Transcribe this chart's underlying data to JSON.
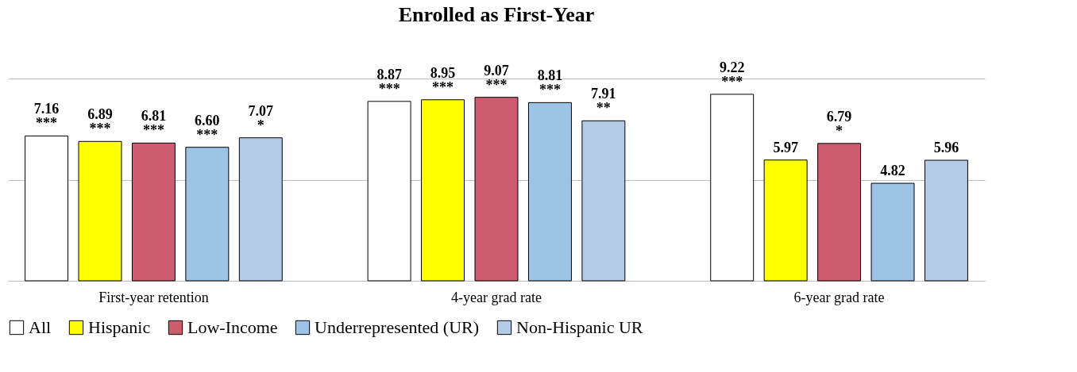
{
  "chart_data": {
    "type": "bar",
    "title": "Enrolled as First-Year",
    "categories": [
      "First-year retention",
      "4-year grad rate",
      "6-year grad rate"
    ],
    "series": [
      {
        "name": "All",
        "color": "#ffffff",
        "values": [
          7.16,
          8.87,
          9.22
        ],
        "value_labels": [
          "7.16\n***",
          "8.87\n***",
          "9.22\n***"
        ]
      },
      {
        "name": "Hispanic",
        "color": "#ffff00",
        "values": [
          6.89,
          8.95,
          5.97
        ],
        "value_labels": [
          "6.89\n***",
          "8.95\n***",
          "5.97"
        ]
      },
      {
        "name": "Low-Income",
        "color": "#cd5c6e",
        "values": [
          6.81,
          9.07,
          6.79
        ],
        "value_labels": [
          "6.81\n***",
          "9.07\n***",
          "6.79\n*"
        ]
      },
      {
        "name": "Underrepresented (UR)",
        "color": "#9dc3e6",
        "values": [
          6.6,
          8.81,
          4.82
        ],
        "value_labels": [
          "6.60\n***",
          "8.81\n***",
          "4.82"
        ]
      },
      {
        "name": "Non-Hispanic UR",
        "color": "#b4cbe8",
        "values": [
          7.07,
          7.91,
          5.96
        ],
        "value_labels": [
          "7.07\n*",
          "7.91\n**",
          "5.96"
        ]
      }
    ],
    "ylim": [
      0,
      10
    ],
    "yticks": [
      {
        "value": 0,
        "label": null
      },
      {
        "value": 5,
        "label": null
      },
      {
        "value": 10,
        "label": null
      }
    ],
    "tick_labels": "x",
    "grid": "y",
    "legend": "bottom"
  }
}
